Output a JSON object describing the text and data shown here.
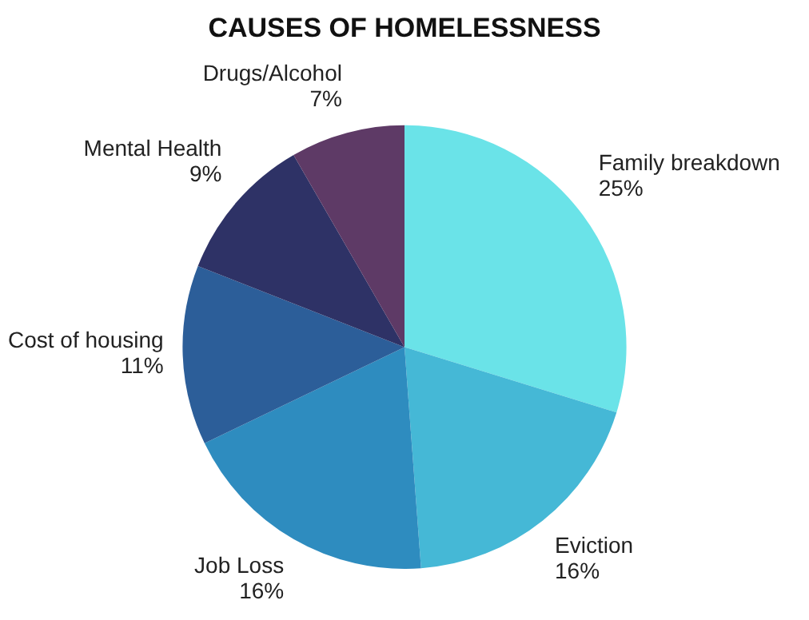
{
  "chart_data": {
    "type": "pie",
    "title": "CAUSES OF HOMELESSNESS",
    "categories": [
      "Family breakdown",
      "Eviction",
      "Job Loss",
      "Cost of housing",
      "Mental Health",
      "Drugs/Alcohol"
    ],
    "values": [
      25,
      16,
      16,
      11,
      9,
      7
    ],
    "value_labels": [
      "25%",
      "16%",
      "16%",
      "11%",
      "9%",
      "7%"
    ],
    "colors": [
      "#6ae3e8",
      "#45b8d6",
      "#2e8cbf",
      "#2c5e99",
      "#2e3266",
      "#5e3a66"
    ],
    "legend": false
  }
}
